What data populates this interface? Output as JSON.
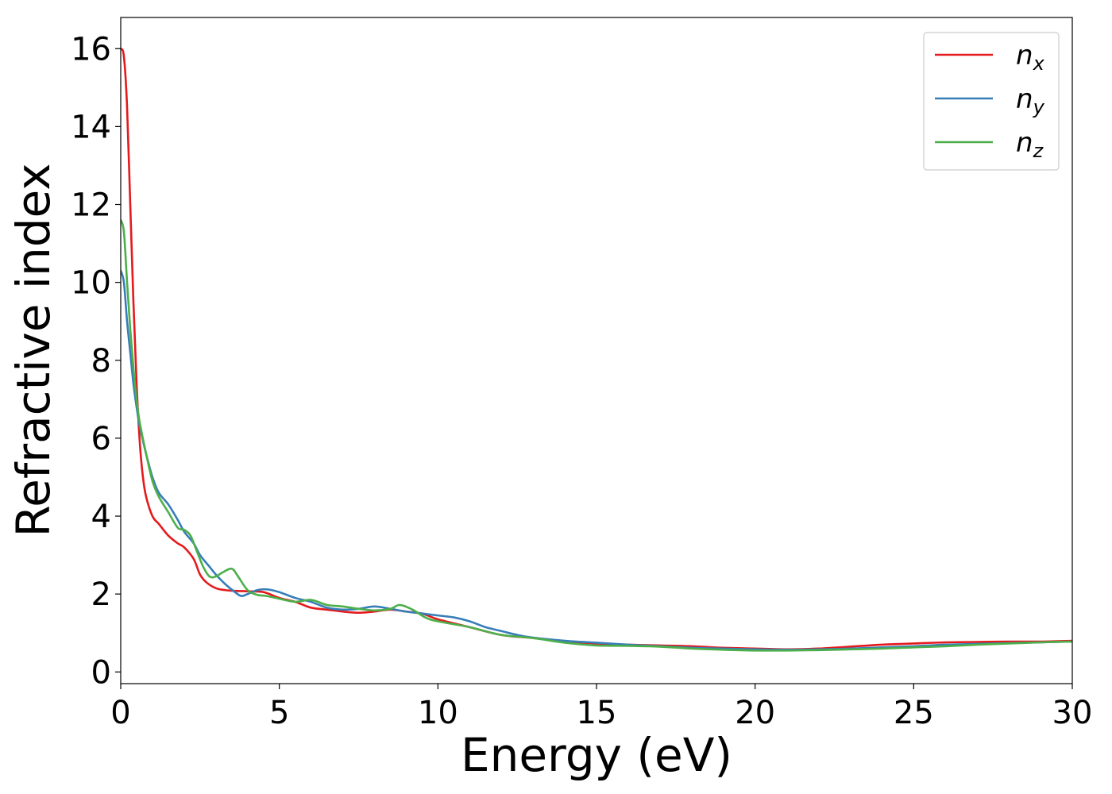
{
  "chart_data": {
    "type": "line",
    "xlabel": "Energy (eV)",
    "ylabel": "Refractive index",
    "xlim": [
      0,
      30
    ],
    "ylim": [
      -0.3,
      16.8
    ],
    "xticks": [
      "0",
      "5",
      "10",
      "15",
      "20",
      "25",
      "30"
    ],
    "yticks": [
      "0",
      "2",
      "4",
      "6",
      "8",
      "10",
      "12",
      "14",
      "16"
    ],
    "grid": false,
    "legend_position": "top-right",
    "series": [
      {
        "name": "n",
        "subscript": "x",
        "color": "#e41a1c",
        "x": [
          0,
          0.1,
          0.2,
          0.3,
          0.4,
          0.5,
          0.6,
          0.7,
          0.8,
          1.0,
          1.2,
          1.5,
          1.8,
          2.0,
          2.3,
          2.5,
          2.7,
          3.0,
          3.3,
          3.6,
          4.0,
          4.5,
          5.0,
          5.5,
          6.0,
          6.5,
          7.0,
          7.5,
          8.0,
          8.5,
          9.0,
          9.5,
          10.0,
          11.0,
          12.0,
          13.0,
          14.0,
          15.0,
          16.0,
          17.0,
          18.0,
          19.0,
          20.0,
          21.0,
          22.0,
          23.0,
          24.0,
          25.0,
          26.0,
          27.0,
          28.0,
          29.0,
          30.0
        ],
        "y": [
          16.0,
          15.8,
          14.5,
          12.0,
          9.5,
          7.4,
          5.9,
          5.0,
          4.5,
          4.0,
          3.8,
          3.5,
          3.3,
          3.2,
          2.9,
          2.5,
          2.3,
          2.15,
          2.1,
          2.08,
          2.07,
          2.05,
          1.9,
          1.8,
          1.65,
          1.6,
          1.55,
          1.52,
          1.55,
          1.6,
          1.55,
          1.5,
          1.35,
          1.15,
          0.95,
          0.87,
          0.78,
          0.73,
          0.7,
          0.68,
          0.66,
          0.62,
          0.6,
          0.58,
          0.6,
          0.65,
          0.7,
          0.73,
          0.76,
          0.77,
          0.78,
          0.78,
          0.8
        ]
      },
      {
        "name": "n",
        "subscript": "y",
        "color": "#377eb8",
        "x": [
          0,
          0.1,
          0.2,
          0.3,
          0.4,
          0.5,
          0.6,
          0.8,
          1.0,
          1.2,
          1.5,
          1.8,
          2.0,
          2.3,
          2.5,
          2.8,
          3.0,
          3.3,
          3.6,
          3.8,
          4.0,
          4.3,
          4.6,
          5.0,
          5.5,
          6.0,
          6.5,
          7.0,
          7.5,
          8.0,
          8.5,
          9.0,
          9.5,
          10.0,
          10.5,
          11.0,
          11.5,
          12.0,
          12.5,
          13.0,
          14.0,
          15.0,
          16.0,
          17.0,
          18.0,
          19.0,
          20.0,
          21.0,
          22.0,
          23.0,
          24.0,
          25.0,
          26.0,
          27.0,
          28.0,
          29.0,
          30.0
        ],
        "y": [
          10.3,
          10.0,
          9.0,
          8.2,
          7.4,
          6.8,
          6.3,
          5.6,
          5.0,
          4.6,
          4.3,
          3.9,
          3.6,
          3.3,
          3.0,
          2.7,
          2.5,
          2.25,
          2.05,
          1.95,
          2.0,
          2.1,
          2.12,
          2.05,
          1.9,
          1.8,
          1.65,
          1.6,
          1.62,
          1.68,
          1.62,
          1.55,
          1.5,
          1.45,
          1.4,
          1.3,
          1.15,
          1.05,
          0.95,
          0.88,
          0.8,
          0.75,
          0.7,
          0.66,
          0.62,
          0.6,
          0.58,
          0.57,
          0.58,
          0.6,
          0.63,
          0.66,
          0.7,
          0.72,
          0.74,
          0.76,
          0.78
        ]
      },
      {
        "name": "n",
        "subscript": "z",
        "color": "#4daf4a",
        "x": [
          0,
          0.1,
          0.2,
          0.3,
          0.4,
          0.5,
          0.6,
          0.8,
          1.0,
          1.2,
          1.5,
          1.8,
          2.0,
          2.2,
          2.4,
          2.6,
          2.8,
          3.0,
          3.2,
          3.5,
          3.7,
          4.0,
          4.3,
          4.6,
          5.0,
          5.5,
          6.0,
          6.5,
          7.0,
          7.5,
          8.0,
          8.5,
          8.8,
          9.2,
          9.6,
          10.0,
          11.0,
          12.0,
          13.0,
          14.0,
          15.0,
          16.0,
          17.0,
          18.0,
          19.0,
          20.0,
          21.0,
          22.0,
          23.0,
          24.0,
          25.0,
          26.0,
          27.0,
          28.0,
          29.0,
          30.0
        ],
        "y": [
          11.6,
          11.3,
          10.0,
          8.8,
          7.8,
          7.0,
          6.4,
          5.6,
          4.9,
          4.5,
          4.1,
          3.7,
          3.65,
          3.5,
          3.1,
          2.7,
          2.45,
          2.45,
          2.55,
          2.65,
          2.45,
          2.1,
          1.98,
          1.95,
          1.88,
          1.8,
          1.85,
          1.72,
          1.68,
          1.62,
          1.58,
          1.62,
          1.72,
          1.6,
          1.4,
          1.3,
          1.15,
          0.95,
          0.87,
          0.75,
          0.68,
          0.67,
          0.65,
          0.6,
          0.57,
          0.55,
          0.55,
          0.56,
          0.58,
          0.6,
          0.63,
          0.66,
          0.7,
          0.73,
          0.76,
          0.78
        ]
      }
    ]
  }
}
